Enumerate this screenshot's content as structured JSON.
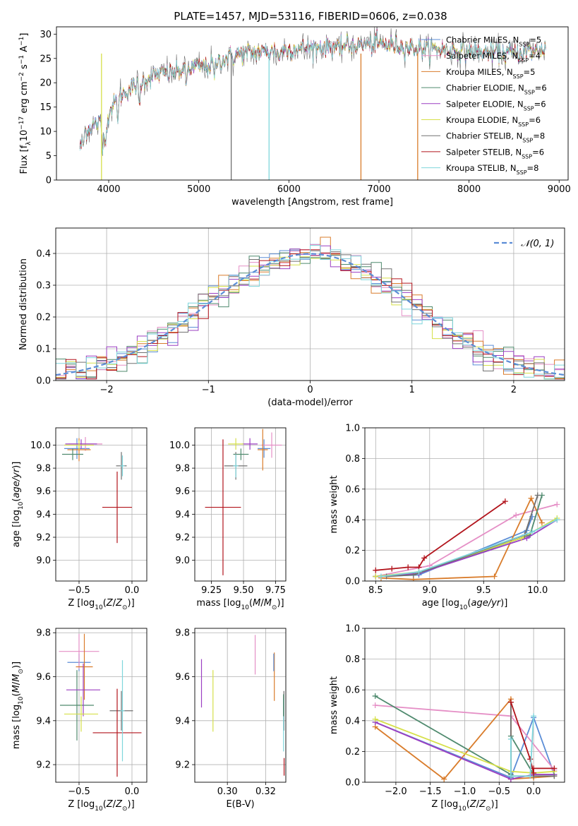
{
  "title": "PLATE=1457, MJD=53116, FIBERID=0606, z=0.038",
  "colors": {
    "chabrier_miles": "#5b8dd6",
    "salpeter_miles": "#e58fc6",
    "kroupa_miles": "#d97c2b",
    "chabrier_elodie": "#4f8a6e",
    "salpeter_elodie": "#9b3fc2",
    "kroupa_elodie": "#d6e04a",
    "chabrier_stelib": "#707070",
    "salpeter_stelib": "#b2141c",
    "kroupa_stelib": "#7fd6dc",
    "gaussian": "#5b8dd6",
    "grid": "#b0b0b0"
  },
  "legend_entries": [
    {
      "color": "#5b8dd6",
      "label": "Chabrier MILES, N",
      "sub": "SSP",
      "value": "=5"
    },
    {
      "color": "#e58fc6",
      "label": "Salpeter MILES, N",
      "sub": "SSP",
      "value": "=4"
    },
    {
      "color": "#d97c2b",
      "label": "Kroupa MILES, N",
      "sub": "SSP",
      "value": "=5"
    },
    {
      "color": "#4f8a6e",
      "label": "Chabrier ELODIE, N",
      "sub": "SSP",
      "value": "=6"
    },
    {
      "color": "#9b3fc2",
      "label": "Salpeter ELODIE, N",
      "sub": "SSP",
      "value": "=6"
    },
    {
      "color": "#d6e04a",
      "label": "Kroupa ELODIE, N",
      "sub": "SSP",
      "value": "=6"
    },
    {
      "color": "#707070",
      "label": "Chabrier STELIB, N",
      "sub": "SSP",
      "value": "=8"
    },
    {
      "color": "#b2141c",
      "label": "Salpeter STELIB, N",
      "sub": "SSP",
      "value": "=6"
    },
    {
      "color": "#7fd6dc",
      "label": "Kroupa STELIB, N",
      "sub": "SSP",
      "value": "=8"
    }
  ],
  "gauss_legend": "𝒩(0, 1)",
  "chart_data": [
    {
      "type": "line",
      "panel": "spectrum",
      "xlabel": "wavelength [Angstrom, rest frame]",
      "ylabel": "Flux [fλ10⁻¹⁷ erg cm⁻² s⁻¹ A⁻¹]",
      "xlim": [
        3420,
        9100
      ],
      "ylim": [
        0,
        31.5
      ],
      "xticks": [
        4000,
        5000,
        6000,
        7000,
        8000,
        9000
      ],
      "yticks": [
        0,
        5,
        10,
        15,
        20,
        25,
        30
      ],
      "x_range": [
        3680,
        8850
      ],
      "continuum": [
        [
          3680,
          9
        ],
        [
          3800,
          11
        ],
        [
          3950,
          12
        ],
        [
          4100,
          17
        ],
        [
          4300,
          19.5
        ],
        [
          4500,
          21.5
        ],
        [
          4700,
          22
        ],
        [
          4900,
          23
        ],
        [
          5100,
          23.5
        ],
        [
          5300,
          25
        ],
        [
          5500,
          26
        ],
        [
          5800,
          26.5
        ],
        [
          6100,
          27
        ],
        [
          6500,
          27.5
        ],
        [
          7000,
          28
        ],
        [
          7500,
          27
        ],
        [
          8000,
          26.5
        ],
        [
          8500,
          26
        ],
        [
          8850,
          27
        ]
      ]
    },
    {
      "type": "line",
      "panel": "residual_histogram",
      "xlabel": "(data-model)/error",
      "ylabel": "Normed distribution",
      "xlim": [
        -2.5,
        2.5
      ],
      "ylim": [
        0,
        0.48
      ],
      "xticks": [
        -2,
        -1,
        0,
        1,
        2
      ],
      "yticks": [
        0.0,
        0.1,
        0.2,
        0.3,
        0.4
      ],
      "bin_width": 0.1,
      "gaussian": {
        "mean": 0,
        "sigma": 1
      }
    },
    {
      "type": "scatter",
      "panel": "age_vs_Z",
      "xlabel": "Z [log₁₀(Z/Z⊙)]",
      "ylabel": "age  [log₁₀(age/yr)]",
      "xlim": [
        -0.72,
        0.14
      ],
      "ylim": [
        8.82,
        10.15
      ],
      "xticks": [
        -0.5,
        0.0
      ],
      "yticks": [
        9.0,
        9.2,
        9.4,
        9.6,
        9.8,
        10.0
      ],
      "points": [
        {
          "series": "Chabrier MILES",
          "x": -0.52,
          "y": 9.97,
          "xerr": 0.12,
          "yerr": 0.09
        },
        {
          "series": "Salpeter MILES",
          "x": -0.44,
          "y": 10.01,
          "xerr": 0.16,
          "yerr": 0.06
        },
        {
          "series": "Kroupa MILES",
          "x": -0.5,
          "y": 9.96,
          "xerr": 0.11,
          "yerr": 0.1
        },
        {
          "series": "Chabrier ELODIE",
          "x": -0.56,
          "y": 9.92,
          "xerr": 0.1,
          "yerr": 0.05
        },
        {
          "series": "Salpeter ELODIE",
          "x": -0.48,
          "y": 10.01,
          "xerr": 0.15,
          "yerr": 0.04
        },
        {
          "series": "Kroupa ELODIE",
          "x": -0.5,
          "y": 10.0,
          "xerr": 0.14,
          "yerr": 0.04
        },
        {
          "series": "Chabrier STELIB",
          "x": -0.1,
          "y": 9.82,
          "xerr": 0.05,
          "yerr": 0.12
        },
        {
          "series": "Salpeter STELIB",
          "x": -0.14,
          "y": 9.46,
          "xerr": 0.14,
          "yerr": 0.31
        },
        {
          "series": "Kroupa STELIB",
          "x": -0.09,
          "y": 9.82,
          "xerr": 0.02,
          "yerr": 0.09
        }
      ]
    },
    {
      "type": "scatter",
      "panel": "age_vs_mass",
      "xlabel": "mass [log₁₀(M/M⊙)]",
      "ylabel": "",
      "xlim": [
        9.12,
        9.83
      ],
      "ylim": [
        8.82,
        10.15
      ],
      "xticks": [
        9.25,
        9.5,
        9.75
      ],
      "yticks": [
        9.0,
        9.2,
        9.4,
        9.6,
        9.8,
        10.0
      ],
      "points": [
        {
          "series": "Chabrier MILES",
          "x": 9.66,
          "y": 9.97,
          "xerr": 0.05,
          "yerr": 0.08
        },
        {
          "series": "Salpeter MILES",
          "x": 9.72,
          "y": 10.0,
          "xerr": 0.08,
          "yerr": 0.11
        },
        {
          "series": "Kroupa MILES",
          "x": 9.65,
          "y": 9.96,
          "xerr": 0.04,
          "yerr": 0.18
        },
        {
          "series": "Chabrier ELODIE",
          "x": 9.48,
          "y": 9.92,
          "xerr": 0.06,
          "yerr": 0.05
        },
        {
          "series": "Salpeter ELODIE",
          "x": 9.55,
          "y": 10.01,
          "xerr": 0.06,
          "yerr": 0.05
        },
        {
          "series": "Kroupa ELODIE",
          "x": 9.44,
          "y": 10.01,
          "xerr": 0.06,
          "yerr": 0.05
        },
        {
          "series": "Chabrier STELIB",
          "x": 9.44,
          "y": 9.82,
          "xerr": 0.09,
          "yerr": 0.12
        },
        {
          "series": "Salpeter STELIB",
          "x": 9.34,
          "y": 9.46,
          "xerr": 0.14,
          "yerr": 0.59
        },
        {
          "series": "Kroupa STELIB",
          "x": 9.44,
          "y": 9.82,
          "xerr": 0.02,
          "yerr": 0.1
        }
      ]
    },
    {
      "type": "line",
      "panel": "mass_weight_vs_age",
      "xlabel": "age  [log₁₀(age/yr)]",
      "ylabel": "mass weight",
      "xlim": [
        8.4,
        10.25
      ],
      "ylim": [
        0,
        1.0
      ],
      "xticks": [
        8.5,
        9.0,
        9.5,
        10.0
      ],
      "yticks": [
        0.0,
        0.2,
        0.4,
        0.6,
        0.8,
        1.0
      ],
      "series": [
        {
          "name": "Chabrier MILES",
          "x": [
            8.5,
            8.9,
            9.9,
            9.95
          ],
          "y": [
            0.03,
            0.04,
            0.33,
            0.42
          ]
        },
        {
          "name": "Salpeter MILES",
          "x": [
            8.5,
            9.0,
            9.8,
            10.18
          ],
          "y": [
            0.03,
            0.1,
            0.43,
            0.5
          ]
        },
        {
          "name": "Kroupa MILES",
          "x": [
            8.55,
            8.85,
            9.6,
            9.94,
            10.04
          ],
          "y": [
            0.02,
            0.01,
            0.03,
            0.54,
            0.38
          ]
        },
        {
          "name": "Chabrier ELODIE",
          "x": [
            8.5,
            8.9,
            9.93,
            10.04
          ],
          "y": [
            0.03,
            0.05,
            0.3,
            0.56
          ]
        },
        {
          "name": "Salpeter ELODIE",
          "x": [
            8.5,
            8.9,
            9.9,
            10.18
          ],
          "y": [
            0.03,
            0.05,
            0.28,
            0.4
          ]
        },
        {
          "name": "Kroupa ELODIE",
          "x": [
            8.5,
            8.9,
            9.85,
            10.18
          ],
          "y": [
            0.03,
            0.06,
            0.28,
            0.41
          ]
        },
        {
          "name": "Chabrier STELIB",
          "x": [
            8.6,
            8.85,
            9.88,
            10.0
          ],
          "y": [
            0.03,
            0.04,
            0.3,
            0.56
          ]
        },
        {
          "name": "Salpeter STELIB",
          "x": [
            8.5,
            8.65,
            8.8,
            8.9,
            8.95,
            9.7
          ],
          "y": [
            0.07,
            0.08,
            0.09,
            0.09,
            0.15,
            0.52
          ]
        },
        {
          "name": "Kroupa STELIB",
          "x": [
            8.55,
            8.9,
            9.95,
            10.18
          ],
          "y": [
            0.03,
            0.06,
            0.32,
            0.4
          ]
        }
      ]
    },
    {
      "type": "scatter",
      "panel": "mass_vs_Z",
      "xlabel": "Z [log₁₀(Z/Z⊙)]",
      "ylabel": "mass [log₁₀(M/M⊙)]",
      "xlim": [
        -0.72,
        0.14
      ],
      "ylim": [
        9.12,
        9.82
      ],
      "xticks": [
        -0.5,
        0.0
      ],
      "yticks": [
        9.2,
        9.4,
        9.6,
        9.8
      ],
      "points": [
        {
          "series": "Chabrier MILES",
          "x": -0.5,
          "y": 9.665,
          "xerr": 0.11,
          "yerr": 0.04
        },
        {
          "series": "Salpeter MILES",
          "x": -0.5,
          "y": 9.715,
          "xerr": 0.19,
          "yerr": 0.08
        },
        {
          "series": "Kroupa MILES",
          "x": -0.45,
          "y": 9.645,
          "xerr": 0.08,
          "yerr": 0.15
        },
        {
          "series": "Chabrier ELODIE",
          "x": -0.52,
          "y": 9.47,
          "xerr": 0.16,
          "yerr": 0.16
        },
        {
          "series": "Salpeter ELODIE",
          "x": -0.46,
          "y": 9.54,
          "xerr": 0.16,
          "yerr": 0.12
        },
        {
          "series": "Kroupa ELODIE",
          "x": -0.48,
          "y": 9.43,
          "xerr": 0.16,
          "yerr": 0.08
        },
        {
          "series": "Chabrier STELIB",
          "x": -0.1,
          "y": 9.445,
          "xerr": 0.11,
          "yerr": 0.09
        },
        {
          "series": "Salpeter STELIB",
          "x": -0.14,
          "y": 9.345,
          "xerr": 0.23,
          "yerr": 0.2
        },
        {
          "series": "Kroupa STELIB",
          "x": -0.09,
          "y": 9.445,
          "xerr": 0.02,
          "yerr": 0.23
        }
      ]
    },
    {
      "type": "scatter",
      "panel": "mass_vs_ebv",
      "xlabel": "E(B-V)",
      "ylabel": "",
      "xlim": [
        0.283,
        0.3305
      ],
      "ylim": [
        9.12,
        9.82
      ],
      "xticks": [
        0.3,
        0.32
      ],
      "yticks": [
        9.2,
        9.4,
        9.6,
        9.8
      ],
      "points": [
        {
          "series": "Salpeter ELODIE",
          "x": 0.2865,
          "y": 9.57,
          "yerr": 0.11
        },
        {
          "series": "Kroupa ELODIE",
          "x": 0.2925,
          "y": 9.49,
          "yerr": 0.14
        },
        {
          "series": "Salpeter MILES",
          "x": 0.3145,
          "y": 9.7,
          "yerr": 0.09
        },
        {
          "series": "Kroupa MILES",
          "x": 0.3245,
          "y": 9.6,
          "yerr": 0.11
        },
        {
          "series": "Chabrier MILES",
          "x": 0.3242,
          "y": 9.665,
          "yerr": 0.04
        },
        {
          "series": "Chabrier STELIB",
          "x": 0.3295,
          "y": 9.445,
          "yerr": 0.09
        },
        {
          "series": "Salpeter STELIB",
          "x": 0.3296,
          "y": 9.19,
          "yerr": 0.04
        },
        {
          "series": "Kroupa STELIB",
          "x": 0.3293,
          "y": 9.38,
          "yerr": 0.12
        },
        {
          "series": "Chabrier ELODIE",
          "x": 0.3293,
          "y": 9.47,
          "yerr": 0.05
        }
      ]
    },
    {
      "type": "line",
      "panel": "mass_weight_vs_Z",
      "xlabel": "Z [log₁₀(Z/Z⊙)]",
      "ylabel": "mass weight",
      "xlim": [
        -2.45,
        0.45
      ],
      "ylim": [
        0,
        1.0
      ],
      "xticks": [
        -2.0,
        -1.5,
        -1.0,
        -0.5,
        0.0
      ],
      "yticks": [
        0.0,
        0.2,
        0.4,
        0.6,
        0.8,
        1.0
      ],
      "series": [
        {
          "name": "Chabrier MILES",
          "x": [
            -2.3,
            -0.33,
            0.0,
            0.3
          ],
          "y": [
            0.39,
            0.03,
            0.42,
            0.05
          ]
        },
        {
          "name": "Salpeter MILES",
          "x": [
            -2.3,
            -0.33,
            0.3
          ],
          "y": [
            0.5,
            0.43,
            0.08
          ]
        },
        {
          "name": "Kroupa MILES",
          "x": [
            -2.3,
            -1.3,
            -0.33,
            -0.33,
            0.0,
            0.3
          ],
          "y": [
            0.36,
            0.02,
            0.54,
            0.02,
            0.03,
            0.04
          ]
        },
        {
          "name": "Chabrier ELODIE",
          "x": [
            -2.3,
            -0.33,
            -0.33,
            0.0,
            0.3
          ],
          "y": [
            0.56,
            0.05,
            0.3,
            0.05,
            0.05
          ]
        },
        {
          "name": "Salpeter ELODIE",
          "x": [
            -2.3,
            -0.33,
            0.0,
            0.3
          ],
          "y": [
            0.39,
            0.02,
            0.05,
            0.05
          ]
        },
        {
          "name": "Kroupa ELODIE",
          "x": [
            -2.3,
            -0.33,
            0.0,
            0.3
          ],
          "y": [
            0.41,
            0.07,
            0.06,
            0.07
          ]
        },
        {
          "name": "Chabrier STELIB",
          "x": [
            -0.33,
            -0.33,
            0.0,
            0.3
          ],
          "y": [
            0.52,
            0.04,
            0.04,
            0.04
          ]
        },
        {
          "name": "Salpeter STELIB",
          "x": [
            -0.33,
            -0.05,
            0.0,
            0.0,
            0.3
          ],
          "y": [
            0.52,
            0.15,
            0.06,
            0.09,
            0.09
          ]
        },
        {
          "name": "Kroupa STELIB",
          "x": [
            -0.33,
            -0.33,
            -0.05,
            0.0
          ],
          "y": [
            0.28,
            0.04,
            0.04,
            0.43
          ]
        }
      ]
    }
  ]
}
